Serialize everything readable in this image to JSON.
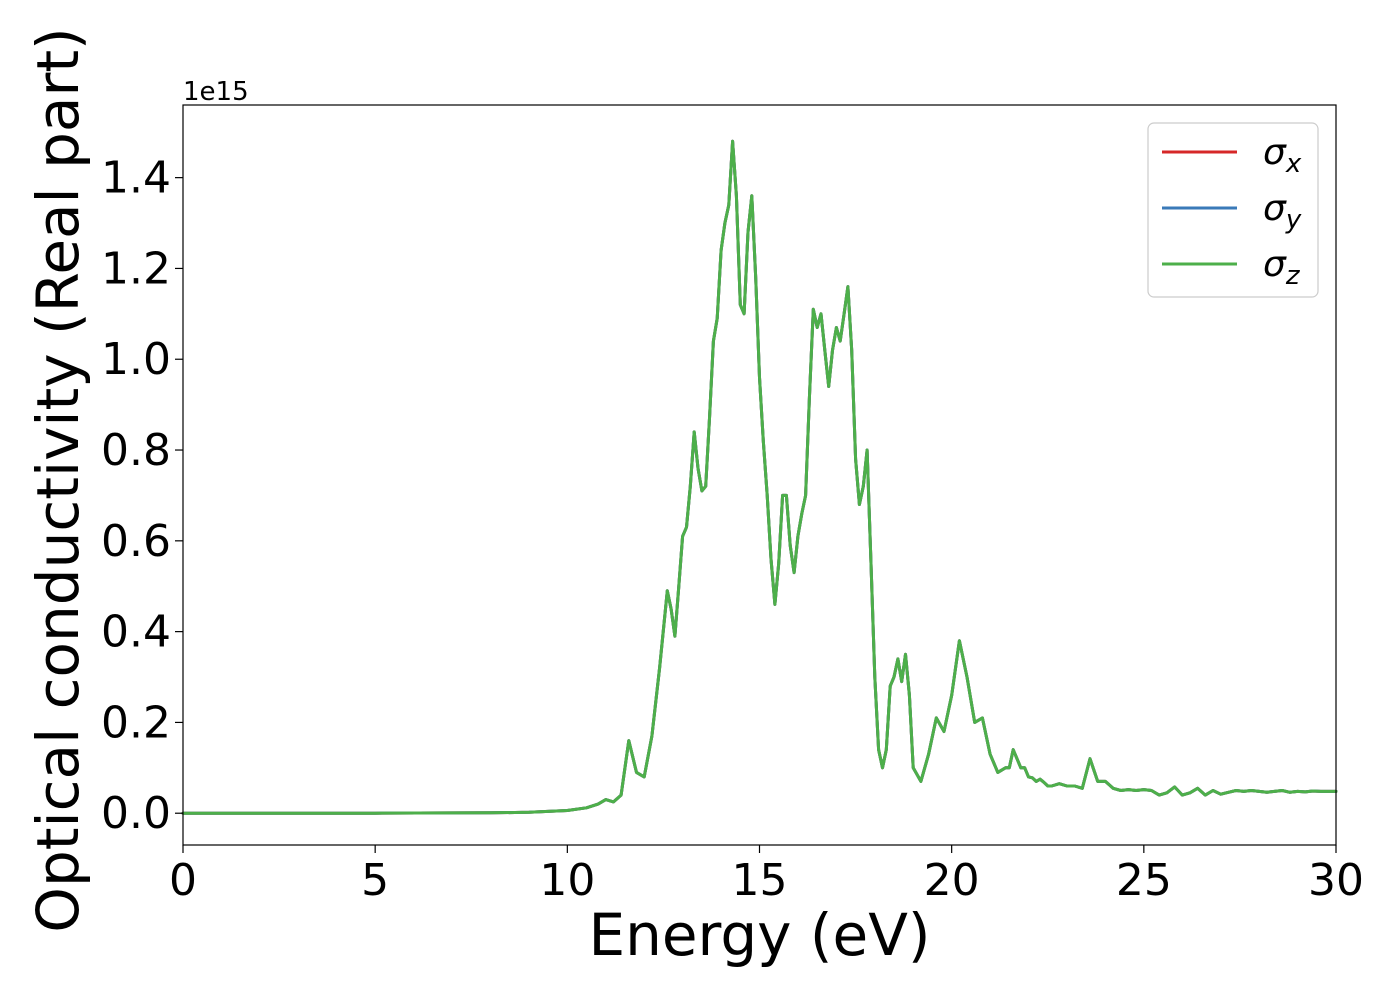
{
  "chart_data": {
    "type": "line",
    "xlabel": "Energy (eV)",
    "ylabel": "Optical conductivity (Real part)",
    "offset_label": "1e15",
    "xlim": [
      0,
      30
    ],
    "ylim": [
      -0.07,
      1.56
    ],
    "y_scale_factor": 1000000000000000.0,
    "xticks": [
      0,
      5,
      10,
      15,
      20,
      25,
      30
    ],
    "xtick_labels": [
      "0",
      "5",
      "10",
      "15",
      "20",
      "25",
      "30"
    ],
    "yticks": [
      0.0,
      0.2,
      0.4,
      0.6,
      0.8,
      1.0,
      1.2,
      1.4
    ],
    "ytick_labels": [
      "0.0",
      "0.2",
      "0.4",
      "0.6",
      "0.8",
      "1.0",
      "1.2",
      "1.4"
    ],
    "grid": false,
    "legend_position": "top-right",
    "series": [
      {
        "name": "σ_x",
        "legend_symbol": "σ",
        "legend_sub": "x",
        "color": "#d62728",
        "x": [
          0,
          5,
          8,
          9,
          10,
          10.5,
          10.8,
          11.0,
          11.2,
          11.4,
          11.6,
          11.8,
          12.0,
          12.2,
          12.4,
          12.6,
          12.7,
          12.8,
          12.9,
          13.0,
          13.1,
          13.2,
          13.3,
          13.4,
          13.5,
          13.6,
          13.7,
          13.8,
          13.9,
          14.0,
          14.1,
          14.2,
          14.3,
          14.4,
          14.5,
          14.6,
          14.7,
          14.8,
          14.9,
          15.0,
          15.1,
          15.2,
          15.3,
          15.4,
          15.5,
          15.6,
          15.7,
          15.8,
          15.9,
          16.0,
          16.1,
          16.2,
          16.3,
          16.4,
          16.5,
          16.6,
          16.7,
          16.8,
          16.9,
          17.0,
          17.1,
          17.2,
          17.3,
          17.4,
          17.5,
          17.6,
          17.7,
          17.8,
          17.9,
          18.0,
          18.1,
          18.2,
          18.3,
          18.4,
          18.5,
          18.6,
          18.7,
          18.8,
          18.9,
          19.0,
          19.2,
          19.4,
          19.6,
          19.8,
          20.0,
          20.2,
          20.4,
          20.6,
          20.8,
          21.0,
          21.2,
          21.4,
          21.5,
          21.6,
          21.7,
          21.8,
          21.9,
          22.0,
          22.1,
          22.2,
          22.3,
          22.4,
          22.5,
          22.6,
          22.8,
          23.0,
          23.2,
          23.4,
          23.6,
          23.8,
          24.0,
          24.2,
          24.4,
          24.6,
          24.8,
          25.0,
          25.2,
          25.4,
          25.6,
          25.8,
          26.0,
          26.2,
          26.4,
          26.6,
          26.8,
          27.0,
          27.2,
          27.4,
          27.6,
          27.8,
          28.0,
          28.2,
          28.4,
          28.6,
          28.8,
          29.0,
          29.2,
          29.4,
          29.6,
          29.8,
          30.0
        ],
        "y": [
          0.0,
          0.0,
          0.001,
          0.002,
          0.006,
          0.012,
          0.02,
          0.03,
          0.025,
          0.04,
          0.16,
          0.09,
          0.08,
          0.17,
          0.32,
          0.49,
          0.45,
          0.39,
          0.5,
          0.61,
          0.63,
          0.72,
          0.84,
          0.76,
          0.71,
          0.72,
          0.87,
          1.04,
          1.09,
          1.24,
          1.3,
          1.34,
          1.48,
          1.36,
          1.12,
          1.1,
          1.28,
          1.36,
          1.18,
          0.96,
          0.82,
          0.7,
          0.56,
          0.46,
          0.55,
          0.7,
          0.7,
          0.59,
          0.53,
          0.61,
          0.66,
          0.7,
          0.92,
          1.11,
          1.07,
          1.1,
          1.02,
          0.94,
          1.02,
          1.07,
          1.04,
          1.1,
          1.16,
          1.02,
          0.78,
          0.68,
          0.72,
          0.8,
          0.55,
          0.3,
          0.14,
          0.1,
          0.14,
          0.28,
          0.3,
          0.34,
          0.29,
          0.35,
          0.26,
          0.1,
          0.07,
          0.13,
          0.21,
          0.18,
          0.26,
          0.38,
          0.3,
          0.2,
          0.21,
          0.13,
          0.09,
          0.1,
          0.1,
          0.14,
          0.12,
          0.1,
          0.1,
          0.08,
          0.078,
          0.07,
          0.075,
          0.068,
          0.06,
          0.06,
          0.065,
          0.06,
          0.06,
          0.055,
          0.12,
          0.07,
          0.07,
          0.055,
          0.05,
          0.052,
          0.05,
          0.052,
          0.05,
          0.04,
          0.045,
          0.058,
          0.04,
          0.045,
          0.055,
          0.04,
          0.05,
          0.042,
          0.046,
          0.05,
          0.048,
          0.05,
          0.048,
          0.046,
          0.048,
          0.05,
          0.046,
          0.048,
          0.047,
          0.049,
          0.048,
          0.048,
          0.048
        ]
      },
      {
        "name": "σ_y",
        "legend_symbol": "σ",
        "legend_sub": "y",
        "color": "#3a7ab8",
        "same_as": "σ_x"
      },
      {
        "name": "σ_z",
        "legend_symbol": "σ",
        "legend_sub": "z",
        "color": "#4daf4a",
        "same_as": "σ_x"
      }
    ]
  }
}
